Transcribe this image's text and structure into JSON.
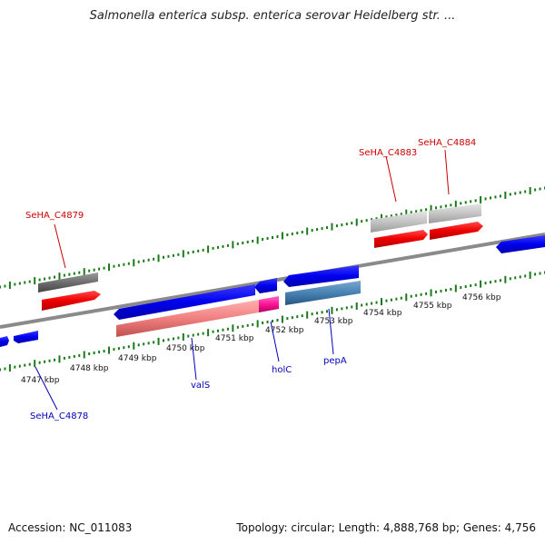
{
  "title": "Salmonella enterica subsp. enterica serovar Heidelberg str. ...",
  "footer": {
    "accession": "Accession: NC_011083",
    "info": "Topology: circular; Length: 4,888,768 bp; Genes: 4,756"
  },
  "ticks": [
    "4747 kbp",
    "4748 kbp",
    "4749 kbp",
    "4750 kbp",
    "4751 kbp",
    "4752 kbp",
    "4753 kbp",
    "4754 kbp",
    "4755 kbp",
    "4756 kbp"
  ],
  "labels": {
    "c4879": "SeHA_C4879",
    "c4883": "SeHA_C4883",
    "c4884": "SeHA_C4884",
    "c4878": "SeHA_C4878",
    "valS": "valS",
    "holC": "holC",
    "pepA": "pepA"
  },
  "colors": {
    "reverse_gene": "#ff0000",
    "reverse_gene_light": "#c0c0c0",
    "forward_gene": "#0000ff",
    "forward_cds": "#f08080",
    "holC_cds": "#ff1493",
    "pepA_cds": "#4682b4",
    "tick": "#1a7a1a",
    "backbone": "#808080",
    "red_label": "#cc0000",
    "blue_label": "#0000bb"
  }
}
